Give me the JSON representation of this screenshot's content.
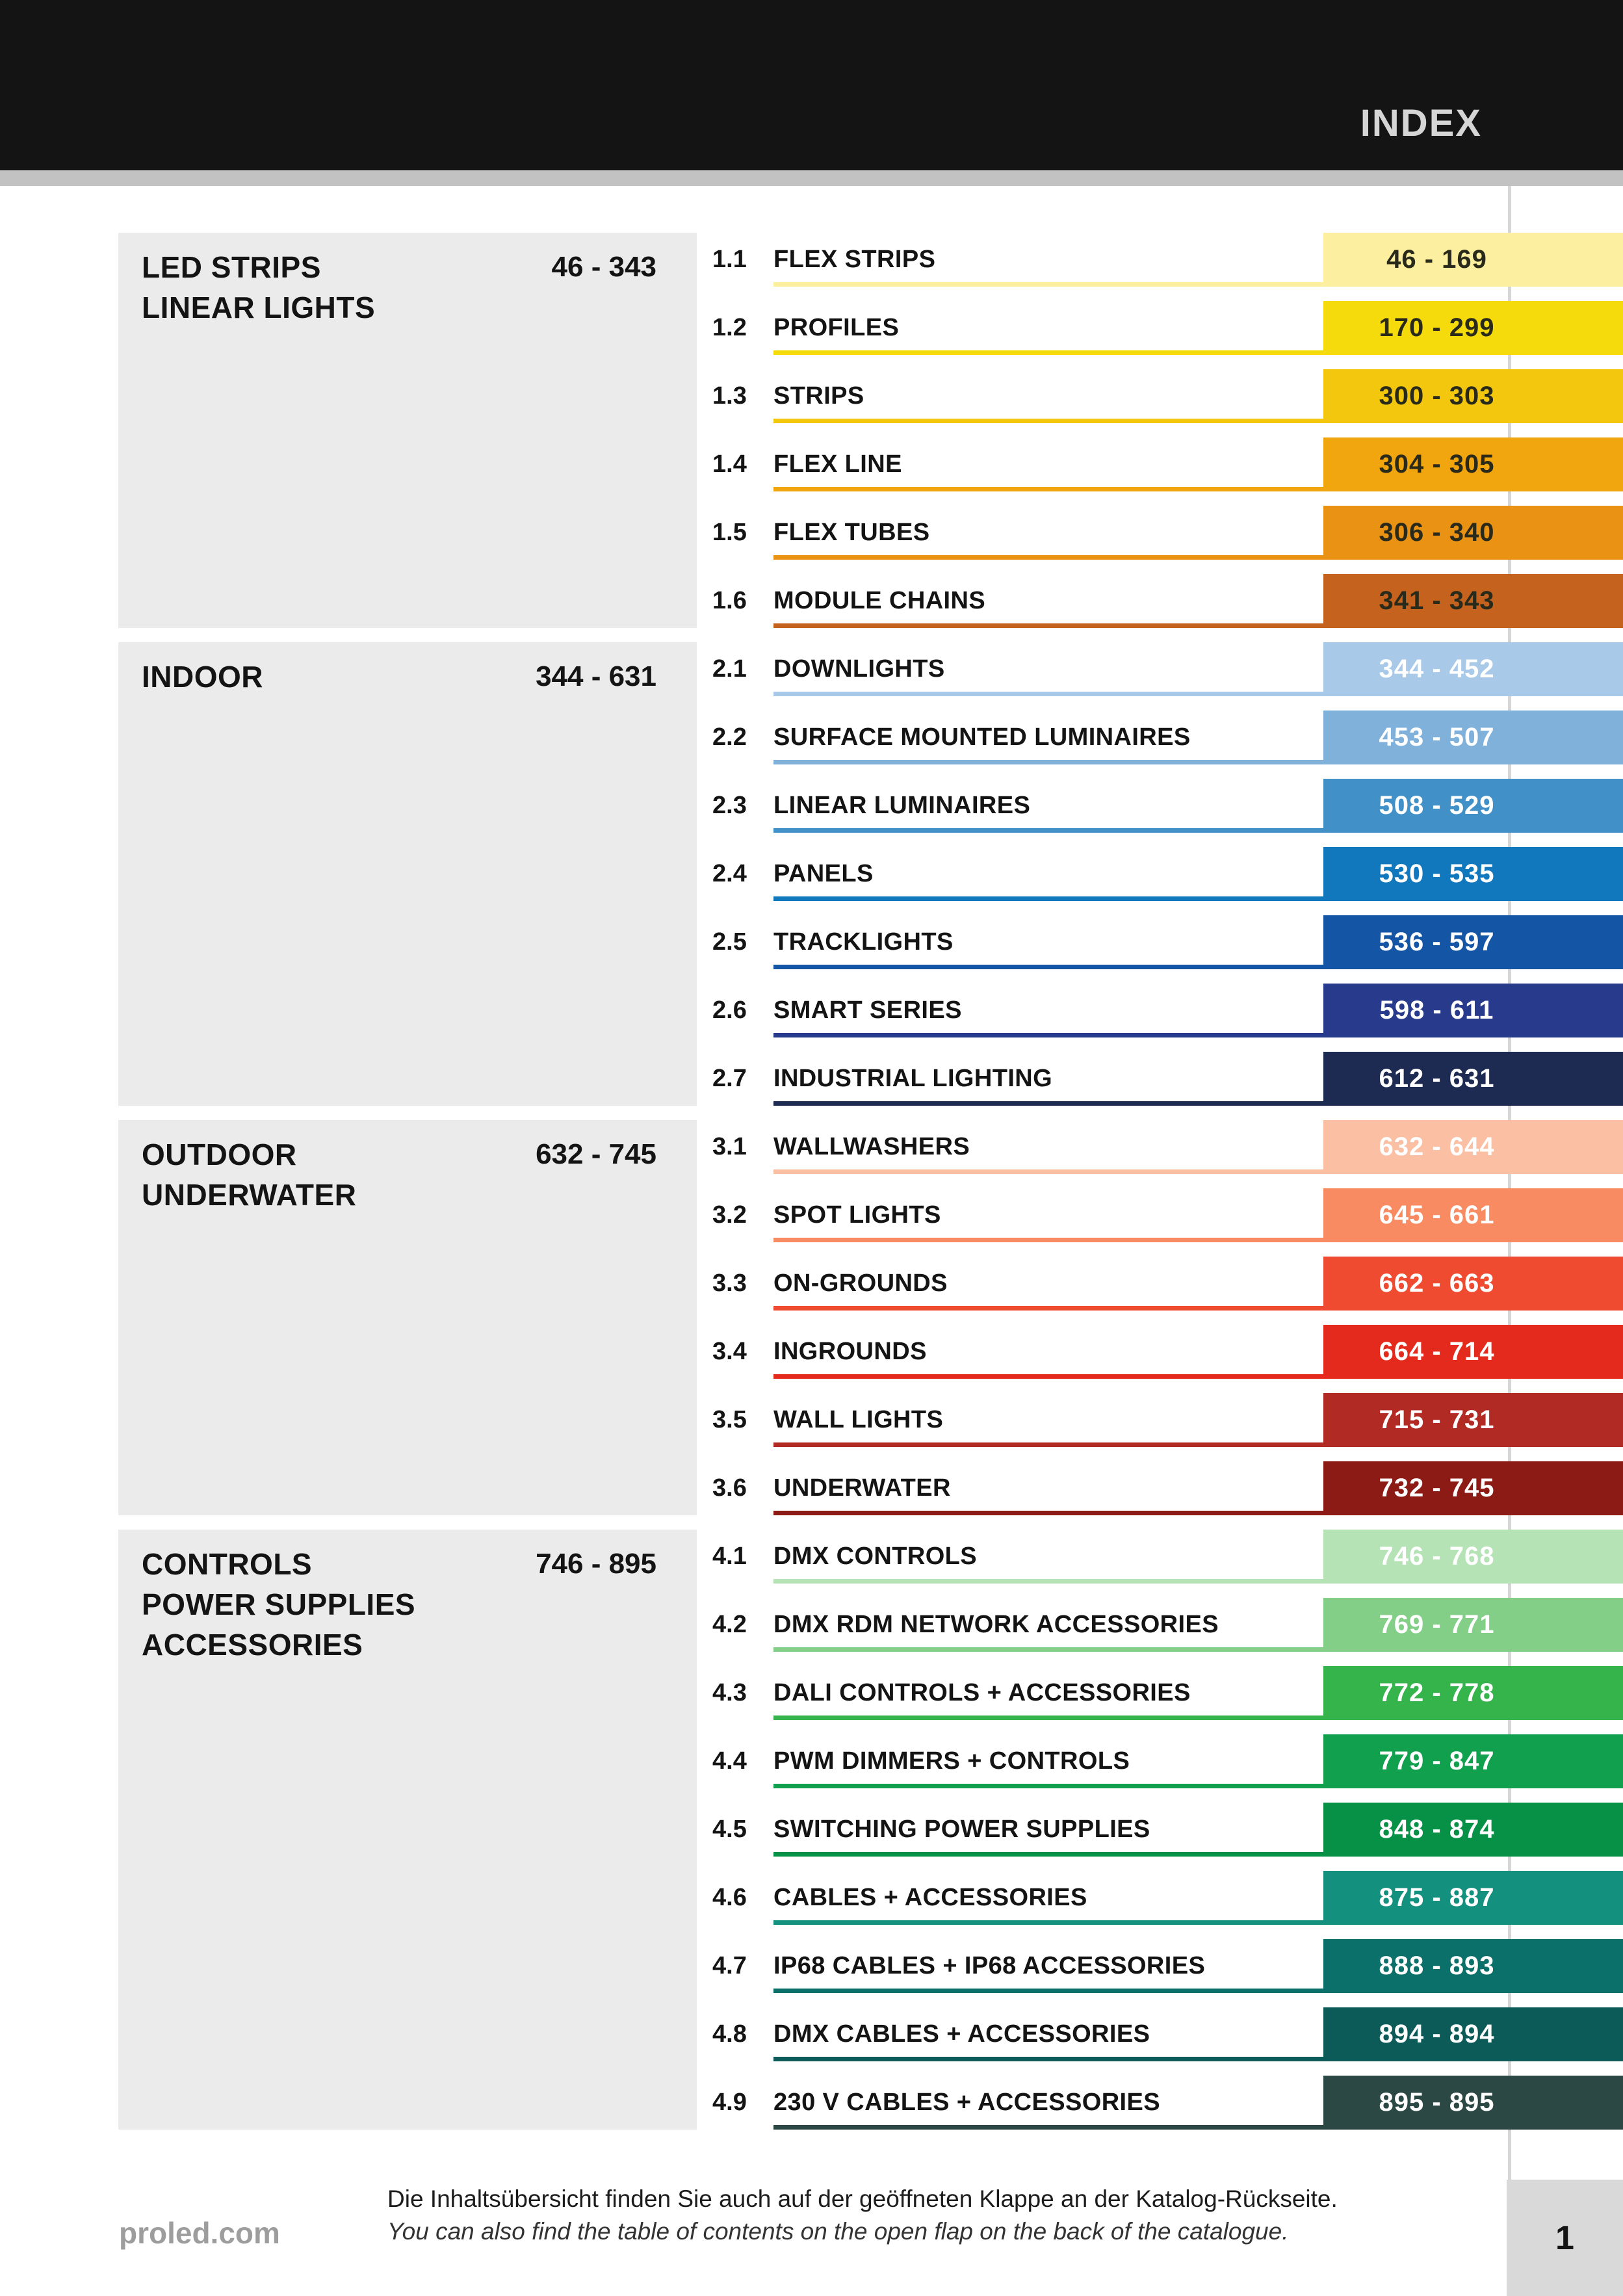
{
  "header": {
    "title": "INDEX"
  },
  "colors": {
    "header_bg": "#141414",
    "header_text": "#d5d5d5",
    "stripe": "#c2c2c2",
    "rule": "#d6d6d6",
    "block_bg": "#ebebeb",
    "page_box": "#d9d9d9"
  },
  "sections": [
    {
      "title_lines": [
        "LED STRIPS",
        "LINEAR LIGHTS"
      ],
      "range": "46 - 343",
      "items": [
        {
          "num": "1.1",
          "label": "FLEX STRIPS",
          "range": "46 - 169",
          "color": "#FCEFA0",
          "text_color": "#2a2a1a"
        },
        {
          "num": "1.2",
          "label": "PROFILES",
          "range": "170 - 299",
          "color": "#F6DB0C",
          "text_color": "#2a2a1a"
        },
        {
          "num": "1.3",
          "label": "STRIPS",
          "range": "300 - 303",
          "color": "#F3C70D",
          "text_color": "#2a2a1a"
        },
        {
          "num": "1.4",
          "label": "FLEX LINE",
          "range": "304 - 305",
          "color": "#F1A60F",
          "text_color": "#2a2a1a"
        },
        {
          "num": "1.5",
          "label": "FLEX TUBES",
          "range": "306 - 340",
          "color": "#E99213",
          "text_color": "#2a2a1a"
        },
        {
          "num": "1.6",
          "label": "MODULE CHAINS",
          "range": "341 - 343",
          "color": "#C5631E",
          "text_color": "#2a2a1a"
        }
      ]
    },
    {
      "title_lines": [
        "INDOOR"
      ],
      "range": "344 - 631",
      "items": [
        {
          "num": "2.1",
          "label": "DOWNLIGHTS",
          "range": "344 - 452",
          "color": "#A8CAE8",
          "text_color": "#ffffff"
        },
        {
          "num": "2.2",
          "label": "SURFACE MOUNTED LUMINAIRES",
          "range": "453 - 507",
          "color": "#7FB1DB",
          "text_color": "#ffffff"
        },
        {
          "num": "2.3",
          "label": "LINEAR LUMINAIRES",
          "range": "508 - 529",
          "color": "#4190C7",
          "text_color": "#ffffff"
        },
        {
          "num": "2.4",
          "label": "PANELS",
          "range": "530 - 535",
          "color": "#1178BD",
          "text_color": "#ffffff"
        },
        {
          "num": "2.5",
          "label": "TRACKLIGHTS",
          "range": "536 - 597",
          "color": "#1456A5",
          "text_color": "#ffffff"
        },
        {
          "num": "2.6",
          "label": "SMART SERIES",
          "range": "598 - 611",
          "color": "#283A8B",
          "text_color": "#ffffff"
        },
        {
          "num": "2.7",
          "label": "INDUSTRIAL LIGHTING",
          "range": "612 - 631",
          "color": "#1D2A52",
          "text_color": "#ffffff"
        }
      ]
    },
    {
      "title_lines": [
        "OUTDOOR",
        "UNDERWATER"
      ],
      "range": "632 - 745",
      "items": [
        {
          "num": "3.1",
          "label": "WALLWASHERS",
          "range": "632 - 644",
          "color": "#FBC0A3",
          "text_color": "#ffffff"
        },
        {
          "num": "3.2",
          "label": "SPOT LIGHTS",
          "range": "645 - 661",
          "color": "#F88B62",
          "text_color": "#ffffff"
        },
        {
          "num": "3.3",
          "label": "ON-GROUNDS",
          "range": "662 - 663",
          "color": "#EE4B30",
          "text_color": "#ffffff"
        },
        {
          "num": "3.4",
          "label": "INGROUNDS",
          "range": "664 - 714",
          "color": "#E32A1C",
          "text_color": "#ffffff"
        },
        {
          "num": "3.5",
          "label": "WALL LIGHTS",
          "range": "715 - 731",
          "color": "#B12A24",
          "text_color": "#ffffff"
        },
        {
          "num": "3.6",
          "label": "UNDERWATER",
          "range": "732 - 745",
          "color": "#8D1B15",
          "text_color": "#ffffff"
        }
      ]
    },
    {
      "title_lines": [
        "CONTROLS",
        "POWER SUPPLIES",
        "ACCESSORIES"
      ],
      "range": "746 - 895",
      "items": [
        {
          "num": "4.1",
          "label": "DMX CONTROLS",
          "range": "746 - 768",
          "color": "#B5E3B5",
          "text_color": "#ffffff"
        },
        {
          "num": "4.2",
          "label": "DMX RDM NETWORK ACCESSORIES",
          "range": "769 - 771",
          "color": "#83CF87",
          "text_color": "#ffffff"
        },
        {
          "num": "4.3",
          "label": "DALI CONTROLS + ACCESSORIES",
          "range": "772 - 778",
          "color": "#35B44B",
          "text_color": "#ffffff"
        },
        {
          "num": "4.4",
          "label": "PWM DIMMERS + CONTROLS",
          "range": "779 - 847",
          "color": "#10A04E",
          "text_color": "#ffffff"
        },
        {
          "num": "4.5",
          "label": "SWITCHING POWER SUPPLIES",
          "range": "848 - 874",
          "color": "#079147",
          "text_color": "#ffffff"
        },
        {
          "num": "4.6",
          "label": "CABLES + ACCESSORIES",
          "range": "875 - 887",
          "color": "#14907F",
          "text_color": "#ffffff"
        },
        {
          "num": "4.7",
          "label": "IP68 CABLES + IP68 ACCESSORIES",
          "range": "888 - 893",
          "color": "#0C706A",
          "text_color": "#ffffff"
        },
        {
          "num": "4.8",
          "label": "DMX CABLES + ACCESSORIES",
          "range": "894 - 894",
          "color": "#0C5B59",
          "text_color": "#ffffff"
        },
        {
          "num": "4.9",
          "label": "230 V CABLES + ACCESSORIES",
          "range": "895 - 895",
          "color": "#2C4845",
          "text_color": "#ffffff"
        }
      ]
    }
  ],
  "footer": {
    "website": "proled.com",
    "note_de": "Die Inhaltsübersicht finden Sie auch auf der geöffneten Klappe an der Katalog-Rückseite.",
    "note_en": "You can also find the table of contents on the open flap on the back of the catalogue.",
    "page_number": "1"
  }
}
